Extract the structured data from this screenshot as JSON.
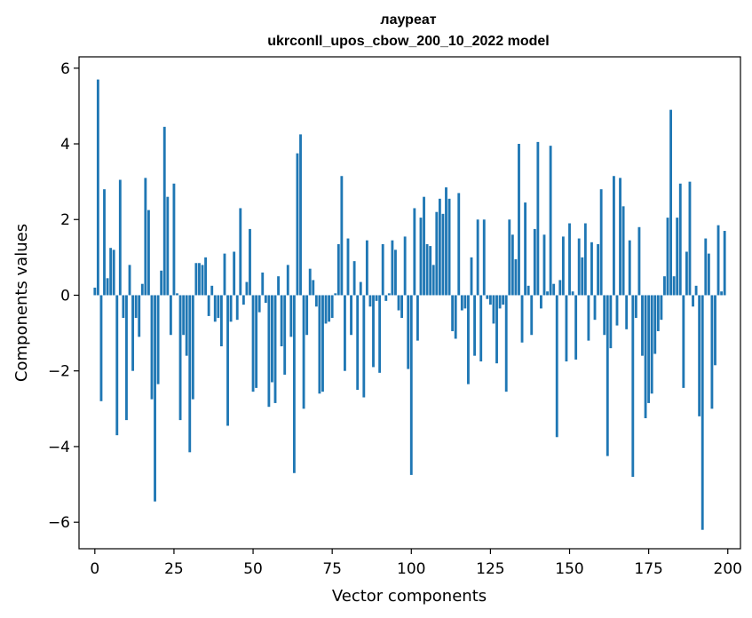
{
  "chart_data": {
    "type": "bar",
    "title_line1": "лауреат",
    "title_line2": "ukrconll_upos_cbow_200_10_2022 model",
    "xlabel": "Vector components",
    "ylabel": "Components values",
    "xlim": [
      -5,
      204
    ],
    "ylim": [
      -6.7,
      6.3
    ],
    "xticks": [
      0,
      25,
      50,
      75,
      100,
      125,
      150,
      175,
      200
    ],
    "xtick_labels": [
      "0",
      "25",
      "50",
      "75",
      "100",
      "125",
      "150",
      "175",
      "200"
    ],
    "yticks": [
      -6,
      -4,
      -2,
      0,
      2,
      4,
      6
    ],
    "ytick_labels": [
      "−6",
      "−4",
      "−2",
      "0",
      "2",
      "4",
      "6"
    ],
    "color": "#1f77b4",
    "values": [
      0.2,
      5.7,
      -2.8,
      2.8,
      0.45,
      1.25,
      1.2,
      -3.7,
      3.05,
      -0.6,
      -3.3,
      0.8,
      -2.0,
      -0.6,
      -1.1,
      0.3,
      3.1,
      2.25,
      -2.75,
      -5.45,
      -2.35,
      0.65,
      4.45,
      2.6,
      -1.05,
      2.95,
      0.05,
      -3.3,
      -1.05,
      -1.6,
      -4.15,
      -2.75,
      0.85,
      0.85,
      0.8,
      1.0,
      -0.55,
      0.25,
      -0.7,
      -0.6,
      -1.35,
      1.1,
      -3.45,
      -0.7,
      1.15,
      -0.65,
      2.3,
      -0.25,
      0.35,
      1.75,
      -2.55,
      -2.45,
      -0.45,
      0.6,
      -0.2,
      -2.95,
      -2.3,
      -2.85,
      0.5,
      -1.35,
      -2.1,
      0.8,
      -1.1,
      -4.7,
      3.75,
      4.25,
      -3.0,
      -1.05,
      0.7,
      0.4,
      -0.3,
      -2.6,
      -2.55,
      -0.75,
      -0.7,
      -0.6,
      0.05,
      1.35,
      3.15,
      -2.0,
      1.5,
      -1.05,
      0.9,
      -2.5,
      0.35,
      -2.7,
      1.45,
      -0.3,
      -1.9,
      -0.15,
      -2.05,
      1.35,
      -0.15,
      0.05,
      1.45,
      1.2,
      -0.4,
      -0.6,
      1.55,
      -1.95,
      -4.75,
      2.3,
      -1.2,
      2.05,
      2.6,
      1.35,
      1.3,
      0.8,
      2.2,
      2.55,
      2.15,
      2.85,
      2.55,
      -0.95,
      -1.15,
      2.7,
      -0.4,
      -0.35,
      -2.35,
      1.0,
      -1.6,
      2.0,
      -1.75,
      2.0,
      -0.1,
      -0.25,
      -0.75,
      -1.8,
      -0.35,
      -0.25,
      -2.55,
      2.0,
      1.6,
      0.95,
      4.0,
      -1.25,
      2.45,
      0.25,
      -1.05,
      1.75,
      4.05,
      -0.35,
      1.6,
      0.1,
      3.95,
      0.3,
      -3.75,
      0.4,
      1.55,
      -1.75,
      1.9,
      0.1,
      -1.7,
      1.5,
      1.0,
      1.9,
      -1.2,
      1.4,
      -0.65,
      1.35,
      2.8,
      -1.05,
      -4.25,
      -1.4,
      3.15,
      -0.8,
      3.1,
      2.35,
      -0.9,
      1.45,
      -4.8,
      -0.6,
      1.8,
      -1.6,
      -3.25,
      -2.85,
      -2.6,
      -1.55,
      -0.95,
      -0.65,
      0.5,
      2.05,
      4.9,
      0.5,
      2.05,
      2.95,
      -2.45,
      1.15,
      3.0,
      -0.3,
      0.25,
      -3.2,
      -6.2,
      1.5,
      1.1,
      -3.0,
      -1.85,
      1.85,
      0.1,
      1.7
    ]
  }
}
